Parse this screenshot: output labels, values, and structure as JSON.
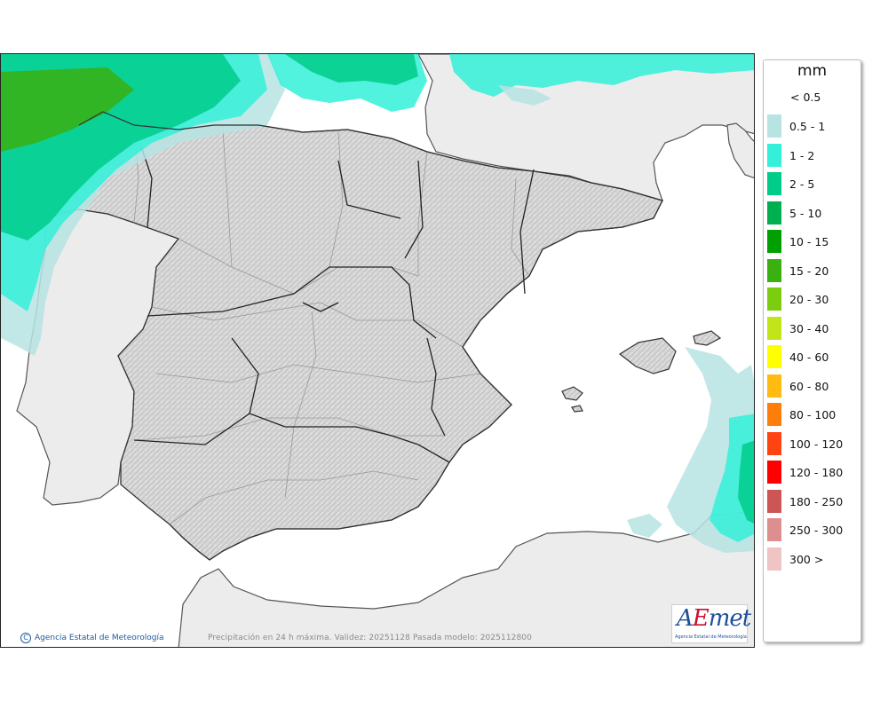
{
  "map": {
    "copyright": "Agencia Estatal de Meteorología",
    "caption": "Precipitación en 24 h máxima. Validez: 20251128 Pasada modelo: 2025112800",
    "logo": {
      "word_a": "A",
      "word_e": "E",
      "word_rest": "met",
      "subtitle": "Agencia Estatal de Meteorología"
    }
  },
  "legend": {
    "title": "mm",
    "below_label": "< 0.5",
    "classes": [
      {
        "label": "0.5 - 1",
        "color": "#b7e3e3"
      },
      {
        "label": "1 - 2",
        "color": "#33f0d8"
      },
      {
        "label": "2 - 5",
        "color": "#00cc8a"
      },
      {
        "label": "5 - 10",
        "color": "#00b050"
      },
      {
        "label": "10 - 15",
        "color": "#00a000"
      },
      {
        "label": "15 - 20",
        "color": "#3ab011"
      },
      {
        "label": "20 - 30",
        "color": "#7ccc10"
      },
      {
        "label": "30 - 40",
        "color": "#c2e51a"
      },
      {
        "label": "40 - 60",
        "color": "#ffff00"
      },
      {
        "label": "60 - 80",
        "color": "#ffbb11"
      },
      {
        "label": "80 - 100",
        "color": "#ff7d0a"
      },
      {
        "label": "100 - 120",
        "color": "#ff4411"
      },
      {
        "label": "120 - 180",
        "color": "#ff0000"
      },
      {
        "label": "180 - 250",
        "color": "#cc5555"
      },
      {
        "label": "250 - 300",
        "color": "#dd8f8f"
      },
      {
        "label": "300 >",
        "color": "#f0c4c4"
      }
    ]
  },
  "colors": {
    "land_spain": "#d9d9d9",
    "land_other": "#ececec",
    "sea": "#ffffff"
  }
}
